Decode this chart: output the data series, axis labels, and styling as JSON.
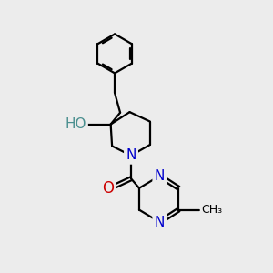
{
  "bg_color": "#ececec",
  "atom_colors": {
    "C": "#000000",
    "N": "#0000cd",
    "O": "#cc0000",
    "H": "#4a8f8f"
  },
  "bond_color": "#000000",
  "bond_width": 1.6,
  "font_size_atom": 11
}
